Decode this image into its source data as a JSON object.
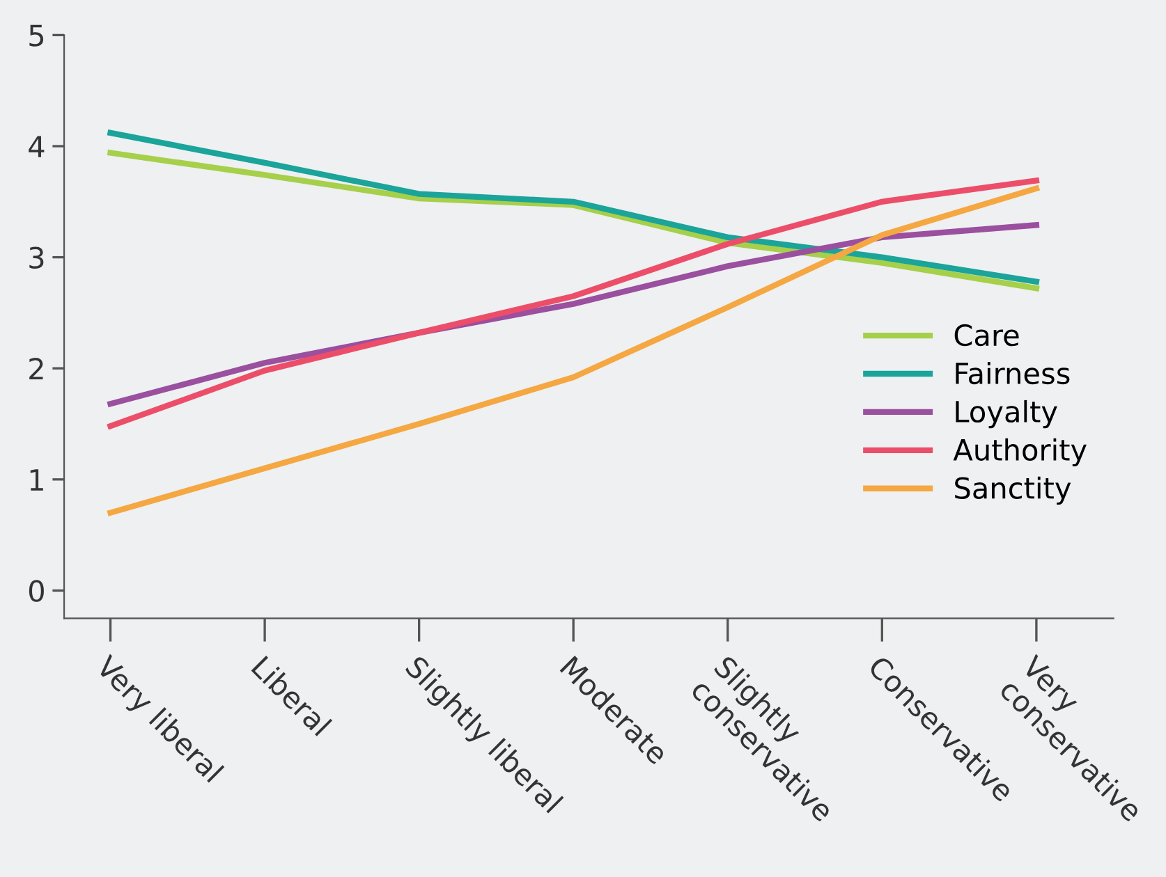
{
  "chart_data": {
    "type": "line",
    "categories": [
      "Very liberal",
      "Liberal",
      "Slightly liberal",
      "Moderate",
      "Slightly\nconservative",
      "Conservative",
      "Very\nconservative"
    ],
    "series": [
      {
        "name": "Care",
        "color": "#a6cf4a",
        "values": [
          3.94,
          3.74,
          3.53,
          3.47,
          3.13,
          2.95,
          2.72
        ]
      },
      {
        "name": "Fairness",
        "color": "#1aa49a",
        "values": [
          4.12,
          3.85,
          3.57,
          3.5,
          3.18,
          3.0,
          2.78
        ]
      },
      {
        "name": "Loyalty",
        "color": "#9b4f9f",
        "values": [
          1.68,
          2.05,
          2.32,
          2.58,
          2.92,
          3.18,
          3.29
        ]
      },
      {
        "name": "Authority",
        "color": "#ec4e6a",
        "values": [
          1.48,
          1.98,
          2.32,
          2.65,
          3.12,
          3.5,
          3.69
        ]
      },
      {
        "name": "Sanctity",
        "color": "#f5a742",
        "values": [
          0.7,
          1.1,
          1.5,
          1.92,
          2.55,
          3.2,
          3.62
        ]
      }
    ],
    "ylim": [
      -0.25,
      5
    ],
    "yticks": [
      0,
      1,
      2,
      3,
      4,
      5
    ],
    "grid": false,
    "legend": "right",
    "marker": "none",
    "line_style": "solid"
  }
}
